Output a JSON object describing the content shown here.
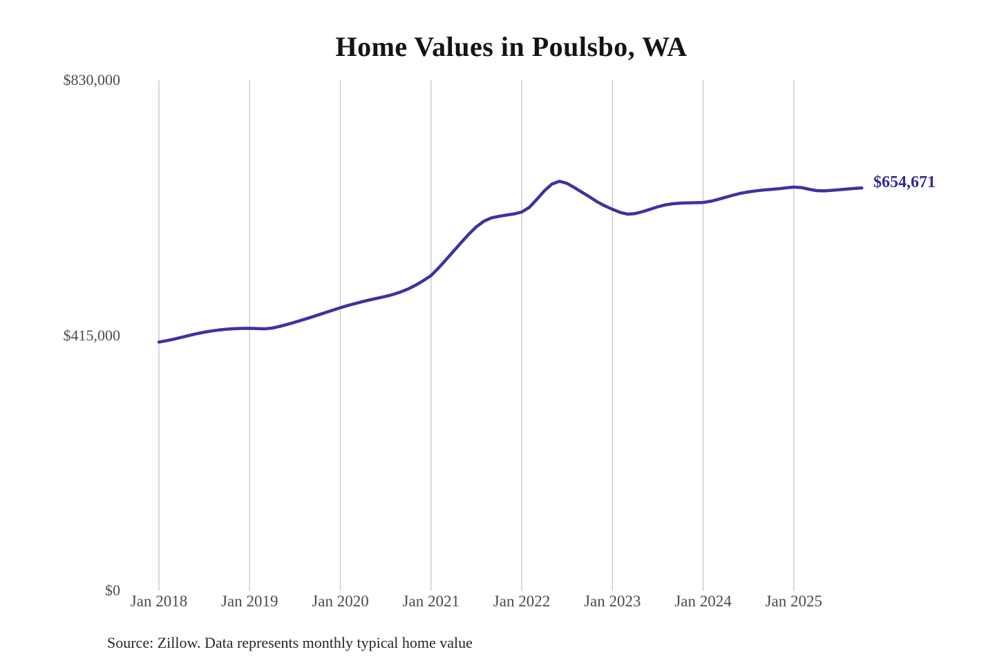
{
  "title": "Home Values in Poulsbo, WA",
  "source_note": "Source: Zillow. Data represents monthly typical home value",
  "end_value_label": "$654,671",
  "colors": {
    "line": "#3b349e",
    "end_label": "#2e2c8f",
    "grid": "#c9c9c9",
    "axis_text": "#4a4a4a",
    "title_text": "#141414",
    "source_text": "#262626",
    "background": "#ffffff"
  },
  "chart_data": {
    "type": "line",
    "title": "Home Values in Poulsbo, WA",
    "xlabel": "",
    "ylabel": "",
    "ylim": [
      0,
      830000
    ],
    "grid": "vertical gridlines at each January",
    "legend_position": "none",
    "final_value_label": "$654,671",
    "y_ticks": [
      {
        "value": 830000,
        "label": "$830,000"
      },
      {
        "value": 415000,
        "label": "$415,000"
      },
      {
        "value": 0,
        "label": "$0"
      }
    ],
    "x_ticks": [
      {
        "month_index": 0,
        "label": "Jan 2018"
      },
      {
        "month_index": 12,
        "label": "Jan 2019"
      },
      {
        "month_index": 24,
        "label": "Jan 2020"
      },
      {
        "month_index": 36,
        "label": "Jan 2021"
      },
      {
        "month_index": 48,
        "label": "Jan 2022"
      },
      {
        "month_index": 60,
        "label": "Jan 2023"
      },
      {
        "month_index": 72,
        "label": "Jan 2024"
      },
      {
        "month_index": 84,
        "label": "Jan 2025"
      }
    ],
    "x": [
      "2018-01",
      "2018-02",
      "2018-03",
      "2018-04",
      "2018-05",
      "2018-06",
      "2018-07",
      "2018-08",
      "2018-09",
      "2018-10",
      "2018-11",
      "2018-12",
      "2019-01",
      "2019-02",
      "2019-03",
      "2019-04",
      "2019-05",
      "2019-06",
      "2019-07",
      "2019-08",
      "2019-09",
      "2019-10",
      "2019-11",
      "2019-12",
      "2020-01",
      "2020-02",
      "2020-03",
      "2020-04",
      "2020-05",
      "2020-06",
      "2020-07",
      "2020-08",
      "2020-09",
      "2020-10",
      "2020-11",
      "2020-12",
      "2021-01",
      "2021-02",
      "2021-03",
      "2021-04",
      "2021-05",
      "2021-06",
      "2021-07",
      "2021-08",
      "2021-09",
      "2021-10",
      "2021-11",
      "2021-12",
      "2022-01",
      "2022-02",
      "2022-03",
      "2022-04",
      "2022-05",
      "2022-06",
      "2022-07",
      "2022-08",
      "2022-09",
      "2022-10",
      "2022-11",
      "2022-12",
      "2023-01",
      "2023-02",
      "2023-03",
      "2023-04",
      "2023-05",
      "2023-06",
      "2023-07",
      "2023-08",
      "2023-09",
      "2023-10",
      "2023-11",
      "2023-12",
      "2024-01",
      "2024-02",
      "2024-03",
      "2024-04",
      "2024-05",
      "2024-06",
      "2024-07",
      "2024-08",
      "2024-09",
      "2024-10",
      "2024-11",
      "2024-12",
      "2025-01",
      "2025-02",
      "2025-03",
      "2025-04",
      "2025-05",
      "2025-06",
      "2025-07",
      "2025-08",
      "2025-09",
      "2025-10"
    ],
    "values": [
      404000,
      406200,
      408800,
      411700,
      414800,
      417600,
      420000,
      422100,
      423800,
      425000,
      425800,
      426200,
      426300,
      425900,
      425600,
      426800,
      429500,
      432800,
      436300,
      440000,
      443900,
      447800,
      451800,
      455900,
      459800,
      463500,
      466800,
      469900,
      472800,
      475500,
      478200,
      481500,
      485500,
      490500,
      496800,
      504000,
      512000,
      524500,
      538000,
      552000,
      566000,
      579500,
      591500,
      600500,
      606000,
      608500,
      610500,
      612500,
      615500,
      623000,
      636000,
      650000,
      661000,
      665500,
      662000,
      655000,
      647500,
      640000,
      632000,
      625500,
      620000,
      615000,
      612000,
      613000,
      616000,
      620000,
      624000,
      627000,
      629000,
      630000,
      630300,
      630600,
      631000,
      633000,
      636000,
      639500,
      643000,
      646000,
      648200,
      650000,
      651300,
      652300,
      653300,
      654800,
      656000,
      655200,
      652500,
      650300,
      649800,
      650800,
      651800,
      652800,
      653800,
      654671
    ]
  }
}
